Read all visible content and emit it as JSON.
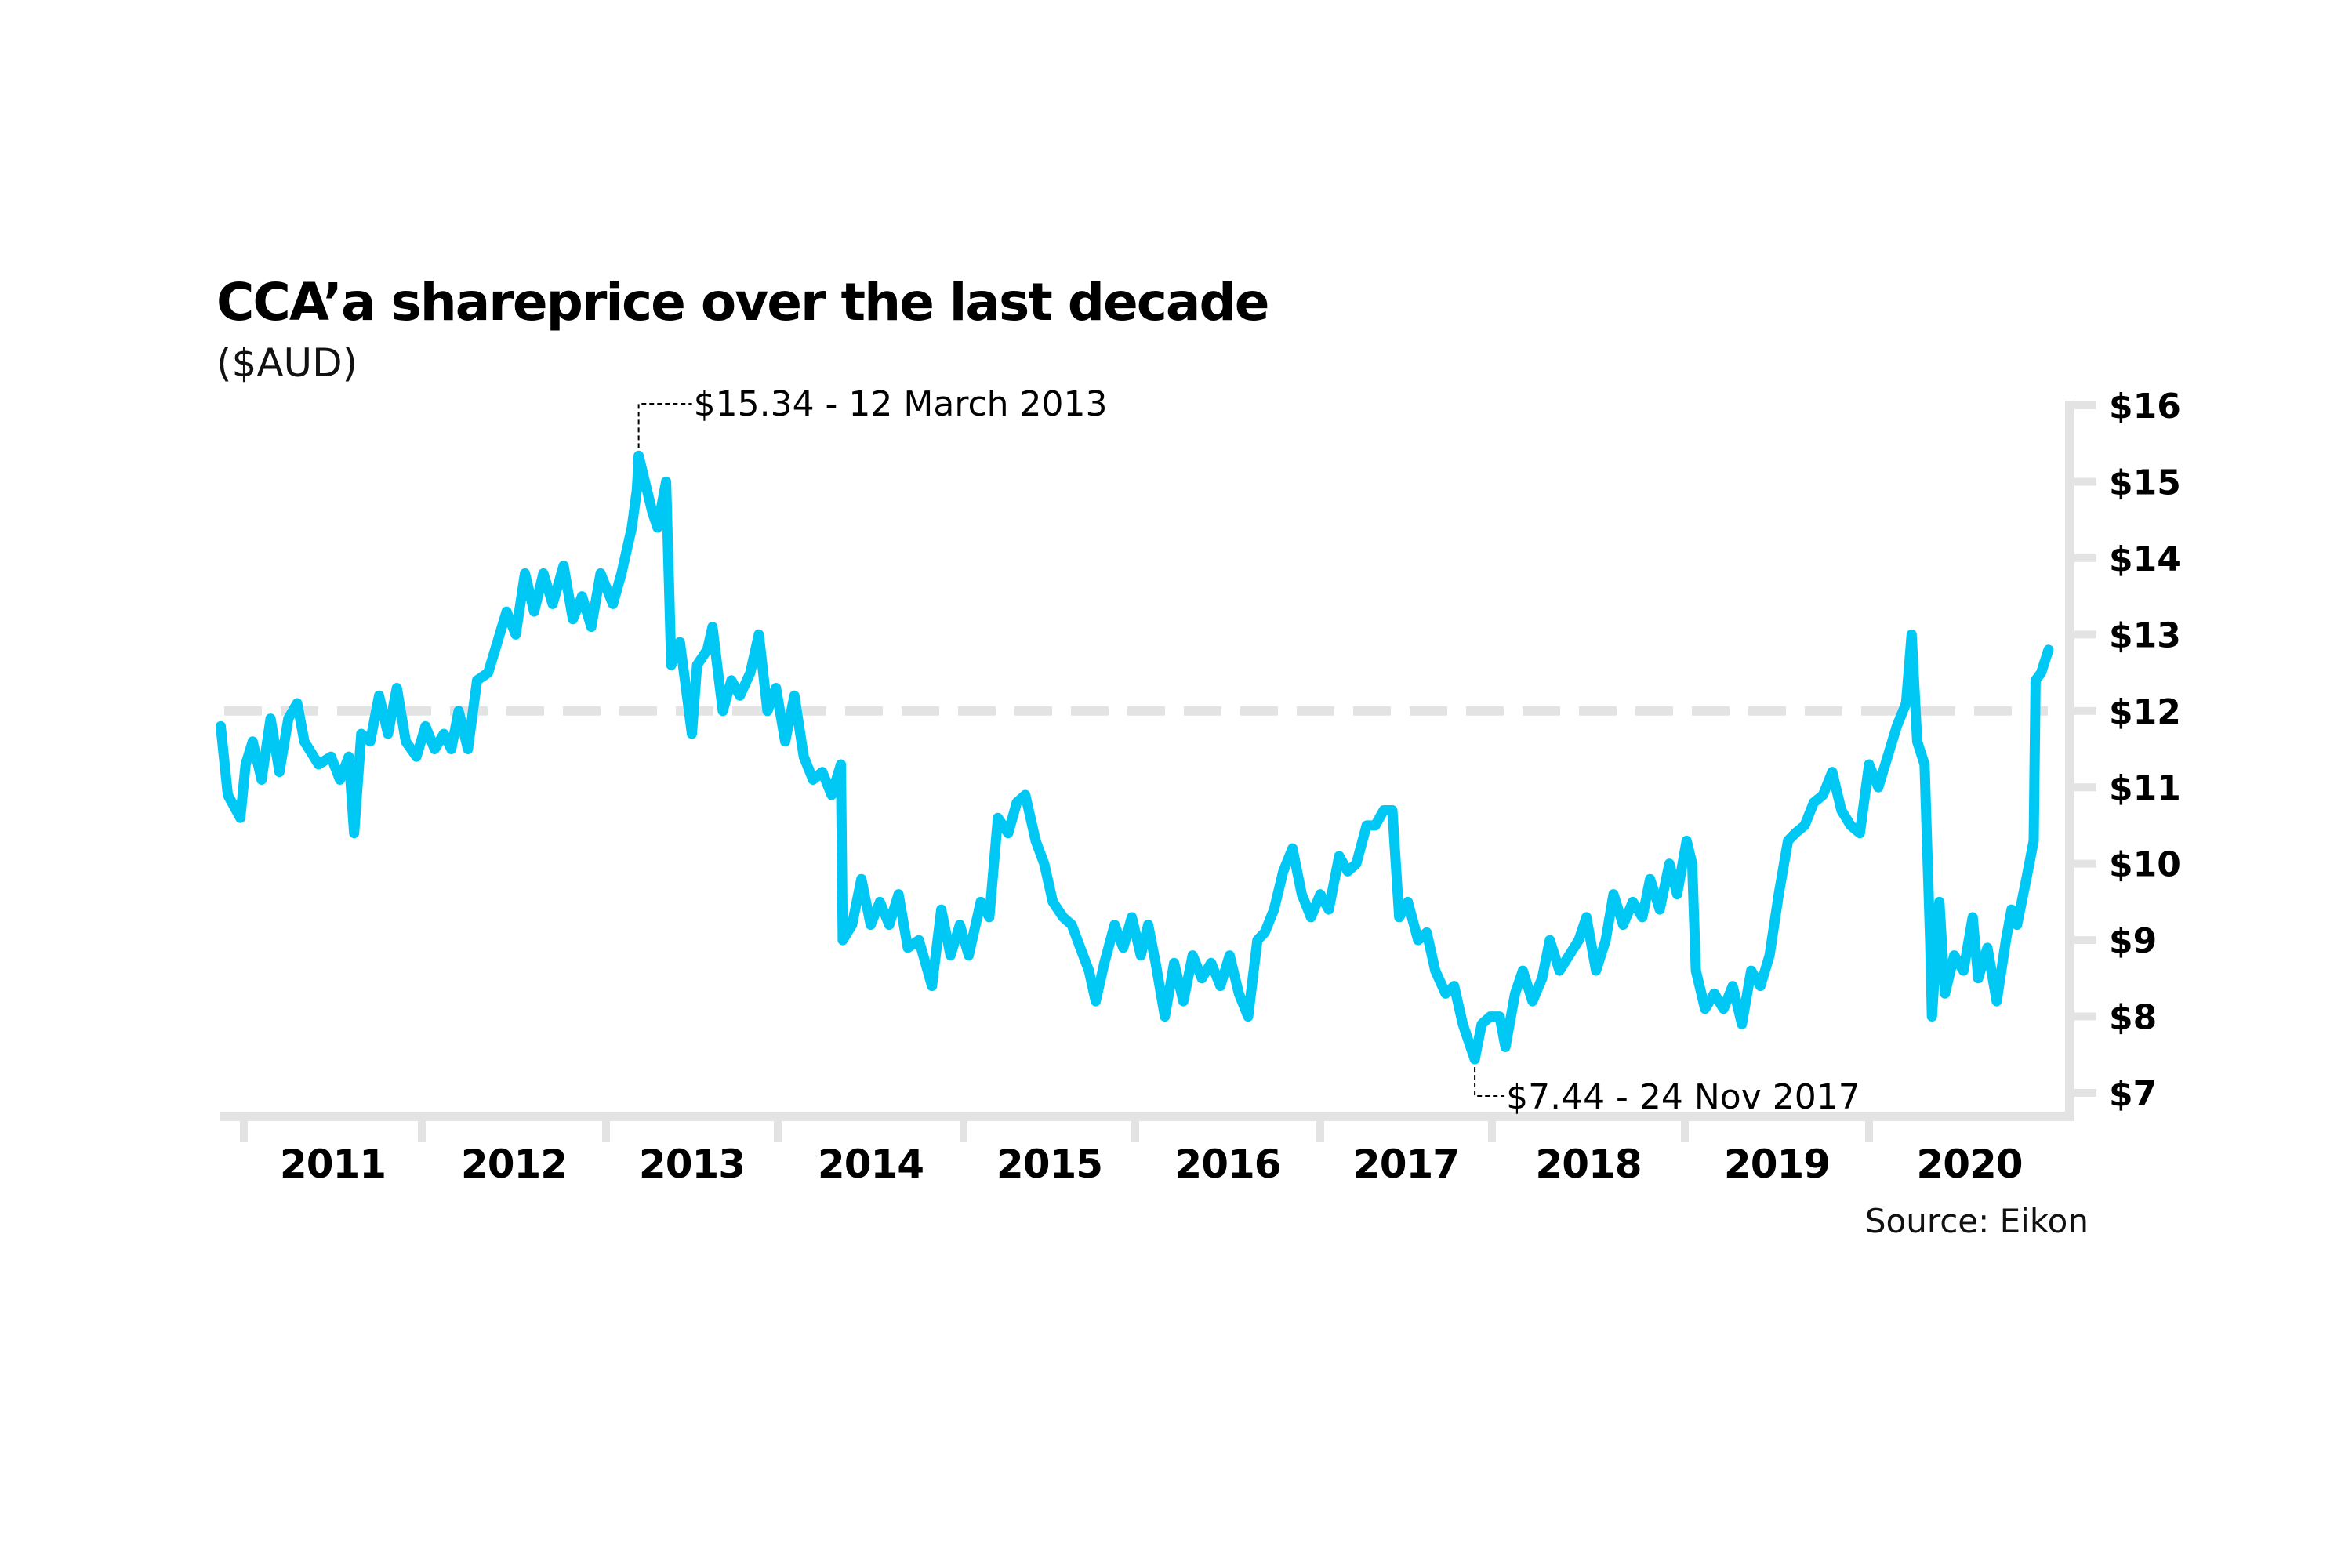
{
  "chart_data": {
    "type": "line",
    "title": "CCA’a shareprice over the last decade",
    "subtitle": "($AUD)",
    "source": "Source: Eikon",
    "xlabel": "",
    "ylabel": "",
    "y_axis_position": "right",
    "ylim": [
      7,
      16
    ],
    "y_ticks": [
      16,
      15,
      14,
      13,
      12,
      11,
      10,
      9,
      8,
      7
    ],
    "y_tick_labels": [
      "$16",
      "$15",
      "$14",
      "$13",
      "$12",
      "$11",
      "$10",
      "$9",
      "$8",
      "$7"
    ],
    "x_tick_labels": [
      "2011",
      "2012",
      "2013",
      "2014",
      "2015",
      "2016",
      "2017",
      "2018",
      "2019",
      "2020"
    ],
    "xlim": [
      2010.87,
      2020.97
    ],
    "reference_line": {
      "value": 12,
      "style": "dashed",
      "color": "#E3E3E3"
    },
    "grid": false,
    "legend": "none",
    "line_color": "#00C8F5",
    "axis_color": "#E3E3E3",
    "annotations": [
      {
        "label": "$15.34 - 12 March 2013",
        "x": 2013.19,
        "y": 15.34,
        "placement": "above-right"
      },
      {
        "label": "$7.44 - 24 Nov 2017",
        "x": 2017.9,
        "y": 7.44,
        "placement": "below-right"
      }
    ],
    "series": [
      {
        "name": "CCA share price",
        "x": [
          2010.87,
          2010.91,
          2010.98,
          2011.01,
          2011.05,
          2011.1,
          2011.15,
          2011.2,
          2011.25,
          2011.3,
          2011.34,
          2011.42,
          2011.49,
          2011.54,
          2011.59,
          2011.62,
          2011.66,
          2011.71,
          2011.76,
          2011.81,
          2011.86,
          2011.91,
          2011.97,
          2012.02,
          2012.07,
          2012.12,
          2012.16,
          2012.2,
          2012.25,
          2012.3,
          2012.36,
          2012.41,
          2012.46,
          2012.51,
          2012.56,
          2012.61,
          2012.66,
          2012.71,
          2012.77,
          2012.82,
          2012.87,
          2012.92,
          2012.97,
          2013.04,
          2013.09,
          2013.15,
          2013.18,
          2013.19,
          2013.27,
          2013.3,
          2013.35,
          2013.38,
          2013.43,
          2013.46,
          2013.5,
          2013.53,
          2013.59,
          2013.62,
          2013.68,
          2013.73,
          2013.78,
          2013.84,
          2013.89,
          2013.94,
          2013.99,
          2014.04,
          2014.09,
          2014.14,
          2014.19,
          2014.24,
          2014.29,
          2014.34,
          2014.35,
          2014.4,
          2014.45,
          2014.5,
          2014.55,
          2014.6,
          2014.65,
          2014.7,
          2014.76,
          2014.83,
          2014.88,
          2014.93,
          2014.98,
          2015.03,
          2015.1,
          2015.15,
          2015.2,
          2015.26,
          2015.31,
          2015.36,
          2015.42,
          2015.47,
          2015.52,
          2015.58,
          2015.63,
          2015.68,
          2015.73,
          2015.77,
          2015.82,
          2015.88,
          2015.93,
          2015.98,
          2016.03,
          2016.07,
          2016.11,
          2016.16,
          2016.21,
          2016.26,
          2016.31,
          2016.36,
          2016.41,
          2016.46,
          2016.51,
          2016.56,
          2016.61,
          2016.66,
          2016.7,
          2016.75,
          2016.8,
          2016.85,
          2016.9,
          2016.95,
          2017.0,
          2017.05,
          2017.11,
          2017.16,
          2017.21,
          2017.27,
          2017.32,
          2017.37,
          2017.42,
          2017.46,
          2017.51,
          2017.57,
          2017.62,
          2017.67,
          2017.73,
          2017.78,
          2017.83,
          2017.9,
          2017.94,
          2017.99,
          2018.04,
          2018.07,
          2018.12,
          2018.16,
          2018.21,
          2018.26,
          2018.3,
          2018.35,
          2018.4,
          2018.45,
          2018.49,
          2018.54,
          2018.59,
          2018.63,
          2018.68,
          2018.73,
          2018.78,
          2018.82,
          2018.87,
          2018.92,
          2018.96,
          2019.01,
          2019.04,
          2019.06,
          2019.11,
          2019.16,
          2019.21,
          2019.26,
          2019.31,
          2019.36,
          2019.41,
          2019.46,
          2019.51,
          2019.56,
          2019.6,
          2019.65,
          2019.7,
          2019.75,
          2019.8,
          2019.85,
          2019.9,
          2019.95,
          2020.0,
          2020.05,
          2020.1,
          2020.15,
          2020.2,
          2020.23,
          2020.26,
          2020.3,
          2020.33,
          2020.34,
          2020.38,
          2020.41,
          2020.46,
          2020.51,
          2020.56,
          2020.59,
          2020.64,
          2020.69,
          2020.74,
          2020.77,
          2020.8,
          2020.85,
          2020.89,
          2020.9,
          2020.93,
          2020.97
        ],
        "values": [
          11.8,
          10.9,
          10.6,
          11.3,
          11.6,
          11.1,
          11.9,
          11.2,
          11.9,
          12.1,
          11.6,
          11.3,
          11.4,
          11.1,
          11.4,
          10.4,
          11.7,
          11.6,
          12.2,
          11.7,
          12.3,
          11.6,
          11.4,
          11.8,
          11.5,
          11.7,
          11.5,
          12.0,
          11.5,
          12.4,
          12.5,
          12.9,
          13.3,
          13.0,
          13.8,
          13.3,
          13.8,
          13.4,
          13.9,
          13.2,
          13.5,
          13.1,
          13.8,
          13.4,
          13.8,
          14.4,
          14.9,
          15.34,
          14.6,
          14.4,
          15.0,
          12.6,
          12.9,
          12.4,
          11.7,
          12.6,
          12.8,
          13.1,
          12.0,
          12.4,
          12.2,
          12.5,
          13.0,
          12.0,
          12.3,
          11.6,
          12.2,
          11.4,
          11.1,
          11.2,
          10.9,
          11.3,
          9.0,
          9.2,
          9.8,
          9.2,
          9.5,
          9.2,
          9.6,
          8.9,
          9.0,
          8.4,
          9.4,
          8.8,
          9.2,
          8.8,
          9.5,
          9.3,
          10.6,
          10.4,
          10.8,
          10.9,
          10.3,
          10.0,
          9.5,
          9.3,
          9.2,
          8.9,
          8.6,
          8.2,
          8.7,
          9.2,
          8.9,
          9.3,
          8.8,
          9.2,
          8.7,
          8.0,
          8.7,
          8.2,
          8.8,
          8.5,
          8.7,
          8.4,
          8.8,
          8.3,
          8.0,
          9.0,
          9.1,
          9.4,
          9.9,
          10.2,
          9.6,
          9.3,
          9.6,
          9.4,
          10.1,
          9.9,
          10.0,
          10.5,
          10.5,
          10.7,
          10.7,
          9.3,
          9.5,
          9.0,
          9.1,
          8.6,
          8.3,
          8.4,
          7.9,
          7.44,
          7.9,
          8.0,
          8.0,
          7.6,
          8.3,
          8.6,
          8.2,
          8.5,
          9.0,
          8.6,
          8.8,
          9.0,
          9.3,
          8.6,
          9.0,
          9.6,
          9.2,
          9.5,
          9.3,
          9.8,
          9.4,
          10.0,
          9.6,
          10.3,
          10.0,
          8.6,
          8.1,
          8.3,
          8.1,
          8.4,
          7.9,
          8.6,
          8.4,
          8.8,
          9.6,
          10.3,
          10.4,
          10.5,
          10.8,
          10.9,
          11.2,
          10.7,
          10.5,
          10.4,
          11.3,
          11.0,
          11.4,
          11.8,
          12.1,
          13.0,
          11.6,
          11.3,
          9.0,
          8.0,
          9.5,
          8.3,
          8.8,
          8.6,
          9.3,
          8.5,
          8.9,
          8.2,
          9.0,
          9.4,
          9.2,
          9.8,
          10.3,
          12.4,
          12.5,
          12.8
        ]
      }
    ]
  }
}
